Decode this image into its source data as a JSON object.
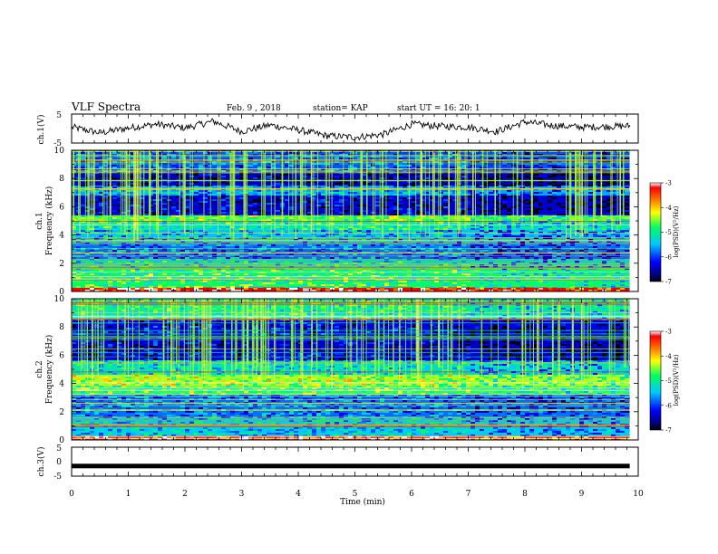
{
  "header": {
    "title": "VLF Spectra",
    "date": "Feb. 9 , 2018",
    "station": "station= KAP",
    "start_time": "start  UT =   16: 20: 1"
  },
  "chart_data": [
    {
      "type": "line",
      "panel": "ch1-waveform",
      "ylabel": "ch.1(V)",
      "ylim": [
        -5,
        5
      ],
      "yticks": [
        "5",
        "-5"
      ],
      "xlim": [
        0,
        10
      ],
      "x": [
        0,
        0.5,
        1,
        1.5,
        2,
        2.5,
        3,
        3.5,
        4,
        4.5,
        5,
        5.5,
        6,
        6.5,
        7,
        7.5,
        8,
        8.5,
        9,
        9.5,
        9.85
      ],
      "values": [
        0.5,
        -1.5,
        0.2,
        1.5,
        0.2,
        2.5,
        -1,
        1.2,
        -0.5,
        -2.5,
        -3,
        -2,
        1.5,
        0.8,
        0.5,
        -1,
        2.3,
        1,
        0.5,
        0.7,
        0.9
      ],
      "line_color": "#000000"
    },
    {
      "type": "heatmap",
      "panel": "ch1-spectrogram",
      "ylabel": "ch.1\nFrequency  (kHz)",
      "ylabel_lines": [
        "ch.1",
        "Frequency  (kHz)"
      ],
      "ylim": [
        0,
        10
      ],
      "yticks": [
        "0",
        "2",
        "4",
        "6",
        "8",
        "10"
      ],
      "xlim": [
        0,
        9.85
      ],
      "colorbar": {
        "label": "log(PSD)(V²/Hz)",
        "range": [
          -7,
          -3
        ],
        "ticks": [
          "-3",
          "-4",
          "-5",
          "-6",
          "-7"
        ]
      },
      "bands_khz": [
        {
          "from": 0.0,
          "to": 0.3,
          "level": -3.2
        },
        {
          "from": 0.3,
          "to": 1.6,
          "level": -4.8
        },
        {
          "from": 1.6,
          "to": 2.3,
          "level": -5.2
        },
        {
          "from": 2.3,
          "to": 3.3,
          "level": -5.8
        },
        {
          "from": 3.3,
          "to": 4.4,
          "level": -5.5
        },
        {
          "from": 4.4,
          "to": 5.0,
          "level": -5.0
        },
        {
          "from": 5.0,
          "to": 5.4,
          "level": -4.6
        },
        {
          "from": 5.4,
          "to": 6.8,
          "level": -6.4
        },
        {
          "from": 6.8,
          "to": 7.5,
          "level": -5.6
        },
        {
          "from": 7.5,
          "to": 8.4,
          "level": -6.5
        },
        {
          "from": 8.4,
          "to": 10.0,
          "level": -5.9
        }
      ]
    },
    {
      "type": "heatmap",
      "panel": "ch2-spectrogram",
      "ylabel": "ch.2\nFrequency  (kHz)",
      "ylabel_lines": [
        "ch.2",
        "Frequency  (kHz)"
      ],
      "ylim": [
        0,
        10
      ],
      "yticks": [
        "0",
        "2",
        "4",
        "6",
        "8",
        "10"
      ],
      "xlim": [
        0,
        9.85
      ],
      "colorbar": {
        "label": "log(PSD)(V²/Hz)",
        "range": [
          -7,
          -3
        ],
        "ticks": [
          "-3",
          "-4",
          "-5",
          "-6",
          "-7"
        ]
      },
      "bands_khz": [
        {
          "from": 0.0,
          "to": 0.3,
          "level": -3.4
        },
        {
          "from": 0.3,
          "to": 1.6,
          "level": -5.4
        },
        {
          "from": 1.6,
          "to": 3.2,
          "level": -5.8
        },
        {
          "from": 3.2,
          "to": 3.8,
          "level": -4.7
        },
        {
          "from": 3.8,
          "to": 4.6,
          "level": -4.4
        },
        {
          "from": 4.6,
          "to": 5.6,
          "level": -5.2
        },
        {
          "from": 5.6,
          "to": 7.5,
          "level": -6.4
        },
        {
          "from": 7.5,
          "to": 8.5,
          "level": -6.3
        },
        {
          "from": 8.5,
          "to": 10.0,
          "level": -5.0
        }
      ]
    },
    {
      "type": "line",
      "panel": "ch3-waveform",
      "ylabel": "ch.3(V)",
      "ylim": [
        -5,
        5
      ],
      "yticks": [
        "5",
        "0",
        "-5"
      ],
      "xlim": [
        0,
        10
      ],
      "x": [
        0,
        9.85
      ],
      "values": [
        -1.5,
        -1.5
      ],
      "line_color": "#000000",
      "xlabel": "Time  (min)",
      "xticks": [
        "0",
        "1",
        "2",
        "3",
        "4",
        "5",
        "6",
        "7",
        "8",
        "9",
        "10"
      ]
    }
  ]
}
